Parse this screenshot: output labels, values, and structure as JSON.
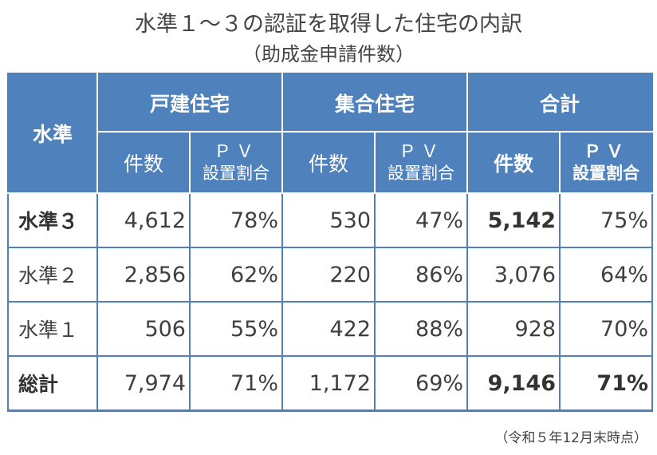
{
  "title": "水準１～３の認証を取得した住宅の内訳",
  "subtitle": "（助成金申請件数）",
  "table": {
    "corner": "水準",
    "groups": [
      "戸建住宅",
      "集合住宅",
      "合計"
    ],
    "sub": {
      "count": "件数",
      "pv_top": "ＰＶ",
      "pv_bottom": "設置割合"
    },
    "rows": [
      {
        "label": "水準３",
        "detached_count": "4,612",
        "detached_pv": "78%",
        "multi_count": "530",
        "multi_pv": "47%",
        "total_count": "5,142",
        "total_pv": "75%"
      },
      {
        "label": "水準２",
        "detached_count": "2,856",
        "detached_pv": "62%",
        "multi_count": "220",
        "multi_pv": "86%",
        "total_count": "3,076",
        "total_pv": "64%"
      },
      {
        "label": "水準１",
        "detached_count": "506",
        "detached_pv": "55%",
        "multi_count": "422",
        "multi_pv": "88%",
        "total_count": "928",
        "total_pv": "70%"
      },
      {
        "label": "総計",
        "detached_count": "7,974",
        "detached_pv": "71%",
        "multi_count": "1,172",
        "multi_pv": "69%",
        "total_count": "9,146",
        "total_pv": "71%"
      }
    ]
  },
  "footnote": "（令和５年12月末時点）",
  "colors": {
    "header_bg": "#4f81bd",
    "header_text": "#ffffff",
    "border": "#4f81bd"
  }
}
